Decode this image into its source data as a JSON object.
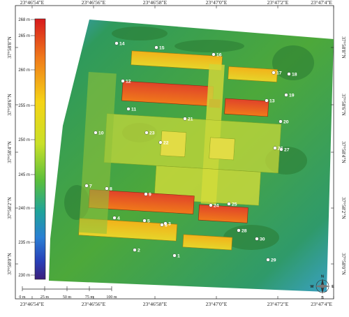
{
  "map": {
    "top_lon_ticks": [
      "23°46'54\"E",
      "23°46'56\"E",
      "23°46'58\"E",
      "23°47'0\"E",
      "23°47'2\"E",
      "23°47'4\"E"
    ],
    "bottom_lon_ticks": [
      "23°46'54\"E",
      "23°46'56\"E",
      "23°46'58\"E",
      "23°47'0\"E",
      "23°47'2\"E",
      "23°47'4\"E"
    ],
    "left_lat_ticks": [
      "37°58'8\"N",
      "37°58'6\"N",
      "37°58'4\"N",
      "37°58'2\"N",
      "37°58'0\"N"
    ],
    "right_lat_ticks": [
      "37°58'8\"N",
      "37°58'6\"N",
      "37°58'4\"N",
      "37°58'2\"N",
      "37°58'0\"N"
    ]
  },
  "elevation_legend": {
    "labels": [
      "268 m",
      "265 m",
      "260 m",
      "255 m",
      "250 m",
      "245 m",
      "240 m",
      "235 m",
      "230 m"
    ],
    "colors": [
      "#d7191c",
      "#f07a1a",
      "#f5d415",
      "#c9e028",
      "#5bbf3b",
      "#1fa39a",
      "#2a7fd4",
      "#2840b8",
      "#3b1f7a"
    ]
  },
  "scale_bar": {
    "labels": [
      "0 m",
      "25 m",
      "50 m",
      "75 m",
      "100 m"
    ]
  },
  "compass": {
    "labels": [
      "N",
      "S",
      "W",
      "E"
    ]
  },
  "points": [
    {
      "id": "1",
      "label": "1"
    },
    {
      "id": "2",
      "label": "2"
    },
    {
      "id": "3",
      "label": "3"
    },
    {
      "id": "4",
      "label": "4"
    },
    {
      "id": "5",
      "label": "5"
    },
    {
      "id": "6",
      "label": "6"
    },
    {
      "id": "7",
      "label": "7"
    },
    {
      "id": "8",
      "label": "8"
    },
    {
      "id": "9",
      "label": "9"
    },
    {
      "id": "10",
      "label": "10"
    },
    {
      "id": "11",
      "label": "11"
    },
    {
      "id": "12",
      "label": "12"
    },
    {
      "id": "13",
      "label": "13"
    },
    {
      "id": "14",
      "label": "14"
    },
    {
      "id": "15",
      "label": "15"
    },
    {
      "id": "16",
      "label": "16"
    },
    {
      "id": "17",
      "label": "17"
    },
    {
      "id": "18",
      "label": "18"
    },
    {
      "id": "19",
      "label": "19"
    },
    {
      "id": "20",
      "label": "20"
    },
    {
      "id": "21",
      "label": "21"
    },
    {
      "id": "22",
      "label": "22"
    },
    {
      "id": "23",
      "label": "23"
    },
    {
      "id": "24",
      "label": "24"
    },
    {
      "id": "25",
      "label": "25"
    },
    {
      "id": "26",
      "label": "26"
    },
    {
      "id": "27",
      "label": "27"
    },
    {
      "id": "28",
      "label": "28"
    },
    {
      "id": "29",
      "label": "29"
    },
    {
      "id": "30",
      "label": "30"
    }
  ]
}
